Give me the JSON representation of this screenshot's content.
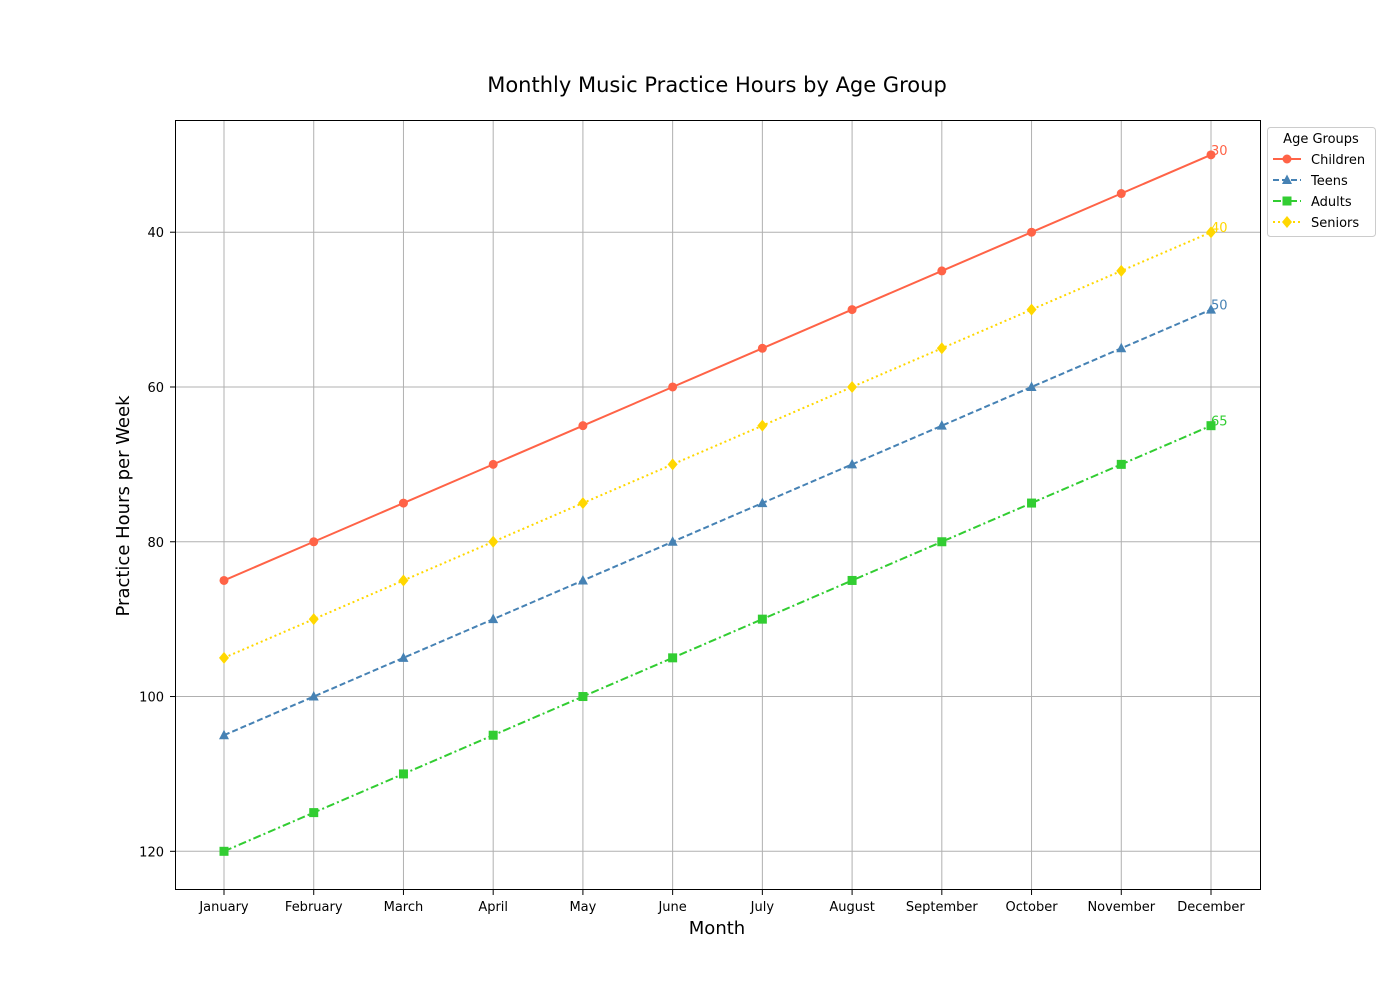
{
  "chart_data": {
    "type": "line",
    "title": "Monthly Music Practice Hours by Age Group",
    "xlabel": "Month",
    "ylabel": "Practice Hours per Week",
    "categories": [
      "January",
      "February",
      "March",
      "April",
      "May",
      "June",
      "July",
      "August",
      "September",
      "October",
      "November",
      "December"
    ],
    "ylim": [
      125,
      25.5
    ],
    "y_inverted": true,
    "yticks": [
      40,
      60,
      80,
      100,
      120
    ],
    "grid": true,
    "legend": {
      "title": "Age Groups",
      "placement": "outside top-right"
    },
    "series": [
      {
        "name": "Children",
        "values": [
          85,
          80,
          75,
          70,
          65,
          60,
          55,
          50,
          45,
          40,
          35,
          30
        ],
        "color": "#ff6347",
        "marker": "circle",
        "linestyle": "solid",
        "end_label": "30"
      },
      {
        "name": "Teens",
        "values": [
          105,
          100,
          95,
          90,
          85,
          80,
          75,
          70,
          65,
          60,
          55,
          50
        ],
        "color": "#4682b4",
        "marker": "triangle",
        "linestyle": "dashed",
        "end_label": "50"
      },
      {
        "name": "Adults",
        "values": [
          120,
          115,
          110,
          105,
          100,
          95,
          90,
          85,
          80,
          75,
          70,
          65
        ],
        "color": "#32cd32",
        "marker": "square",
        "linestyle": "dashdot",
        "end_label": "65"
      },
      {
        "name": "Seniors",
        "values": [
          95,
          90,
          85,
          80,
          75,
          70,
          65,
          60,
          55,
          50,
          45,
          40
        ],
        "color": "#ffd700",
        "marker": "diamond",
        "linestyle": "dotted",
        "end_label": "40"
      }
    ]
  }
}
